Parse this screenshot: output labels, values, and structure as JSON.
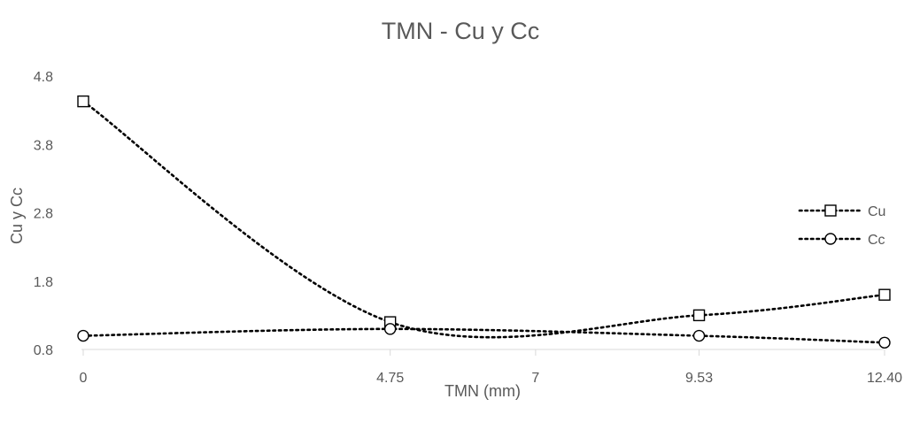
{
  "chart_data": {
    "type": "line",
    "title": "TMN - Cu y Cc",
    "xlabel": "TMN (mm)",
    "ylabel": "Cu  y  Cc",
    "x_tick_labels": [
      "0",
      "4.75",
      "7",
      "9.53",
      "12.40"
    ],
    "x_range": [
      0,
      12.4
    ],
    "ylim": [
      0.8,
      4.8
    ],
    "y_ticks": [
      0.8,
      1.8,
      2.8,
      3.8,
      4.8
    ],
    "y_tick_labels": [
      "0.8",
      "1.8",
      "2.8",
      "3.8",
      "4.8"
    ],
    "grid": false,
    "legend_position": "right",
    "series": [
      {
        "name": "Cu",
        "marker": "square",
        "line_style": "dotted",
        "smooth": true,
        "color": "#000000",
        "x": [
          0,
          4.75,
          9.53,
          12.4
        ],
        "y": [
          4.43,
          1.2,
          1.3,
          1.6
        ]
      },
      {
        "name": "Cc",
        "marker": "circle",
        "line_style": "dotted",
        "smooth": true,
        "color": "#000000",
        "x": [
          0,
          4.75,
          9.53,
          12.4
        ],
        "y": [
          1.0,
          1.1,
          1.0,
          0.9
        ]
      }
    ]
  }
}
